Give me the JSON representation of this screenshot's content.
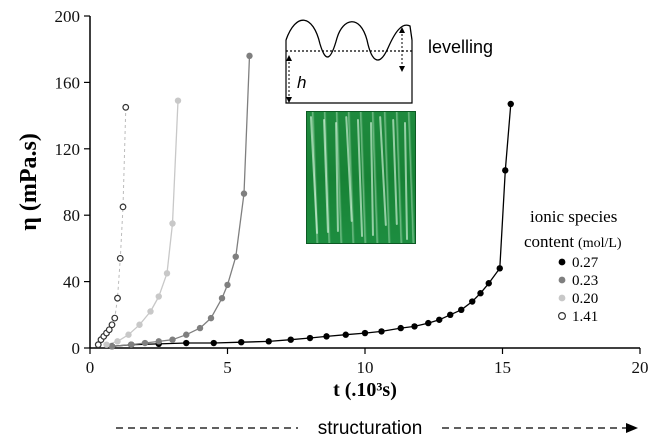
{
  "chart_data": {
    "type": "scatter",
    "xlabel": "t (.10³s)",
    "ylabel": "η (mPa.s)",
    "xlim": [
      0,
      20
    ],
    "ylim": [
      0,
      200
    ],
    "x_ticks": [
      "0",
      "5",
      "10",
      "15",
      "20"
    ],
    "y_ticks": [
      "0",
      "40",
      "80",
      "120",
      "160",
      "200"
    ],
    "grid": false,
    "legend": {
      "title_line1": "ionic species",
      "title_line2": "content",
      "title_unit": "(mol/L)",
      "placement": "right",
      "entries": [
        "0.27",
        "0.23",
        "0.20",
        "1.41"
      ]
    },
    "series": [
      {
        "name": "0.27",
        "color": "#000000",
        "marker": "filled",
        "x": [
          0.8,
          1.5,
          2.5,
          3.5,
          4.5,
          5.5,
          6.5,
          7.3,
          8.0,
          8.6,
          9.3,
          10.0,
          10.6,
          11.3,
          11.8,
          12.3,
          12.7,
          13.1,
          13.5,
          13.9,
          14.2,
          14.5,
          14.9,
          15.1,
          15.3
        ],
        "y": [
          1,
          2,
          2.5,
          3,
          3,
          3.5,
          4,
          5,
          6,
          7,
          8,
          9,
          10,
          12,
          13,
          15,
          17,
          20,
          23,
          28,
          33,
          39,
          48,
          107,
          147
        ]
      },
      {
        "name": "0.23",
        "color": "#7f7f7f",
        "marker": "filled",
        "x": [
          0.8,
          1.5,
          2.0,
          2.5,
          3.0,
          3.5,
          4.0,
          4.4,
          4.8,
          5.0,
          5.3,
          5.6,
          5.8
        ],
        "y": [
          1,
          2,
          3,
          4,
          5,
          8,
          12,
          18,
          30,
          38,
          55,
          93,
          176
        ]
      },
      {
        "name": "0.20",
        "color": "#c8c8c8",
        "marker": "filled",
        "x": [
          0.6,
          1.0,
          1.4,
          1.8,
          2.2,
          2.5,
          2.8,
          3.0,
          3.2
        ],
        "y": [
          2,
          4,
          8,
          14,
          22,
          31,
          45,
          75,
          149
        ]
      },
      {
        "name": "1.41",
        "color": "#333333",
        "marker": "open",
        "x": [
          0.3,
          0.4,
          0.5,
          0.6,
          0.7,
          0.8,
          0.9,
          1.0,
          1.1,
          1.2,
          1.3
        ],
        "y": [
          2,
          5,
          7,
          9,
          11,
          14,
          18,
          30,
          54,
          85,
          145
        ]
      }
    ],
    "annotations": {
      "levelling": "levelling",
      "h_label": "h",
      "structuration": "structuration"
    }
  }
}
